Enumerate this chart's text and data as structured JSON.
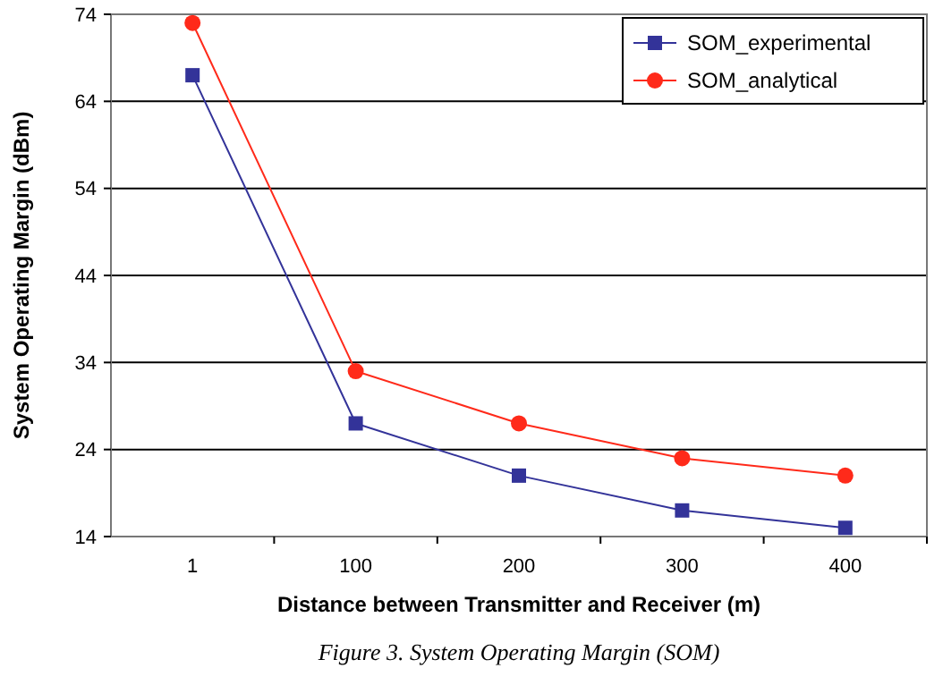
{
  "chart_data": {
    "type": "line",
    "xlabel": "Distance between Transmitter and Receiver (m)",
    "ylabel": "System Operating Margin (dBm)",
    "categories": [
      "1",
      "100",
      "200",
      "300",
      "400"
    ],
    "series": [
      {
        "name": "SOM_experimental",
        "color": "#333399",
        "marker": "square",
        "values": [
          67,
          27,
          21,
          17,
          15
        ]
      },
      {
        "name": "SOM_analytical",
        "color": "#ff2a1a",
        "marker": "circle",
        "values": [
          73,
          33,
          27,
          23,
          21
        ]
      }
    ],
    "ylim": [
      14,
      74
    ],
    "yticks": [
      14,
      24,
      34,
      44,
      54,
      64,
      74
    ],
    "grid": "y",
    "legend": "top right",
    "annotations": [
      "Figure 3. System Operating Margin (SOM)"
    ]
  }
}
